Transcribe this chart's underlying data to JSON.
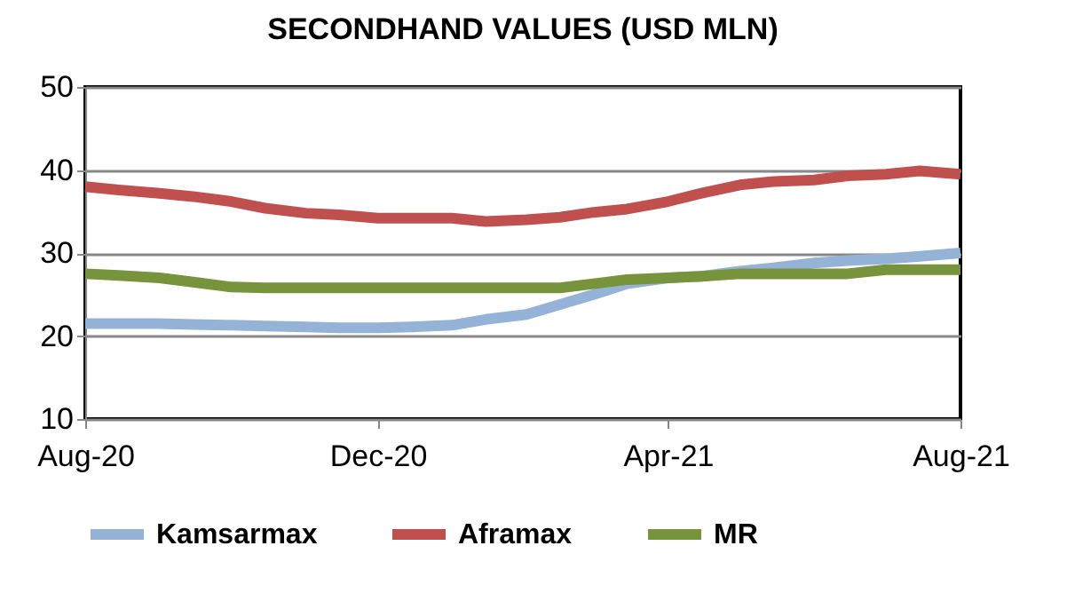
{
  "chart_data": {
    "type": "line",
    "title": "SECONDHAND VALUES (USD MLN)",
    "x": [
      "2020-08-01",
      "2020-08-15",
      "2020-09-01",
      "2020-09-15",
      "2020-10-01",
      "2020-10-15",
      "2020-11-01",
      "2020-11-15",
      "2020-12-01",
      "2020-12-15",
      "2021-01-01",
      "2021-01-15",
      "2021-02-01",
      "2021-02-15",
      "2021-03-01",
      "2021-03-15",
      "2021-04-01",
      "2021-04-15",
      "2021-05-01",
      "2021-05-15",
      "2021-06-01",
      "2021-06-15",
      "2021-07-01",
      "2021-07-15",
      "2021-08-01"
    ],
    "series": [
      {
        "name": "Kamsarmax",
        "color": "#95b3d7",
        "values": [
          21.5,
          21.5,
          21.5,
          21.4,
          21.3,
          21.2,
          21.1,
          21,
          21,
          21.1,
          21.3,
          22,
          22.6,
          23.8,
          25,
          26.3,
          27,
          27.2,
          27.8,
          28.2,
          28.8,
          29.1,
          29.3,
          29.6,
          30
        ]
      },
      {
        "name": "Aframax",
        "color": "#c0504d",
        "values": [
          38,
          37.6,
          37.2,
          36.8,
          36.2,
          35.4,
          34.8,
          34.6,
          34.2,
          34.2,
          34.2,
          33.8,
          34,
          34.3,
          34.9,
          35.3,
          36.2,
          37.2,
          38.2,
          38.6,
          38.8,
          39.3,
          39.5,
          39.9,
          39.5
        ]
      },
      {
        "name": "MR",
        "color": "#77933c",
        "values": [
          27.5,
          27.3,
          27,
          26.5,
          25.9,
          25.8,
          25.8,
          25.8,
          25.8,
          25.8,
          25.8,
          25.8,
          25.8,
          25.8,
          26.3,
          26.8,
          27,
          27.2,
          27.5,
          27.5,
          27.5,
          27.5,
          28,
          28,
          28
        ]
      }
    ],
    "ylim": [
      10,
      50
    ],
    "yticks": [
      10,
      20,
      30,
      40,
      50
    ],
    "xlim": [
      "2020-08-01",
      "2021-08-01"
    ],
    "xticks": [
      {
        "value": "2020-08-01",
        "label": "Aug-20"
      },
      {
        "value": "2020-12-01",
        "label": "Dec-20"
      },
      {
        "value": "2021-04-01",
        "label": "Apr-21"
      },
      {
        "value": "2021-08-01",
        "label": "Aug-21"
      }
    ],
    "grid": "y",
    "legend": "bottom"
  }
}
